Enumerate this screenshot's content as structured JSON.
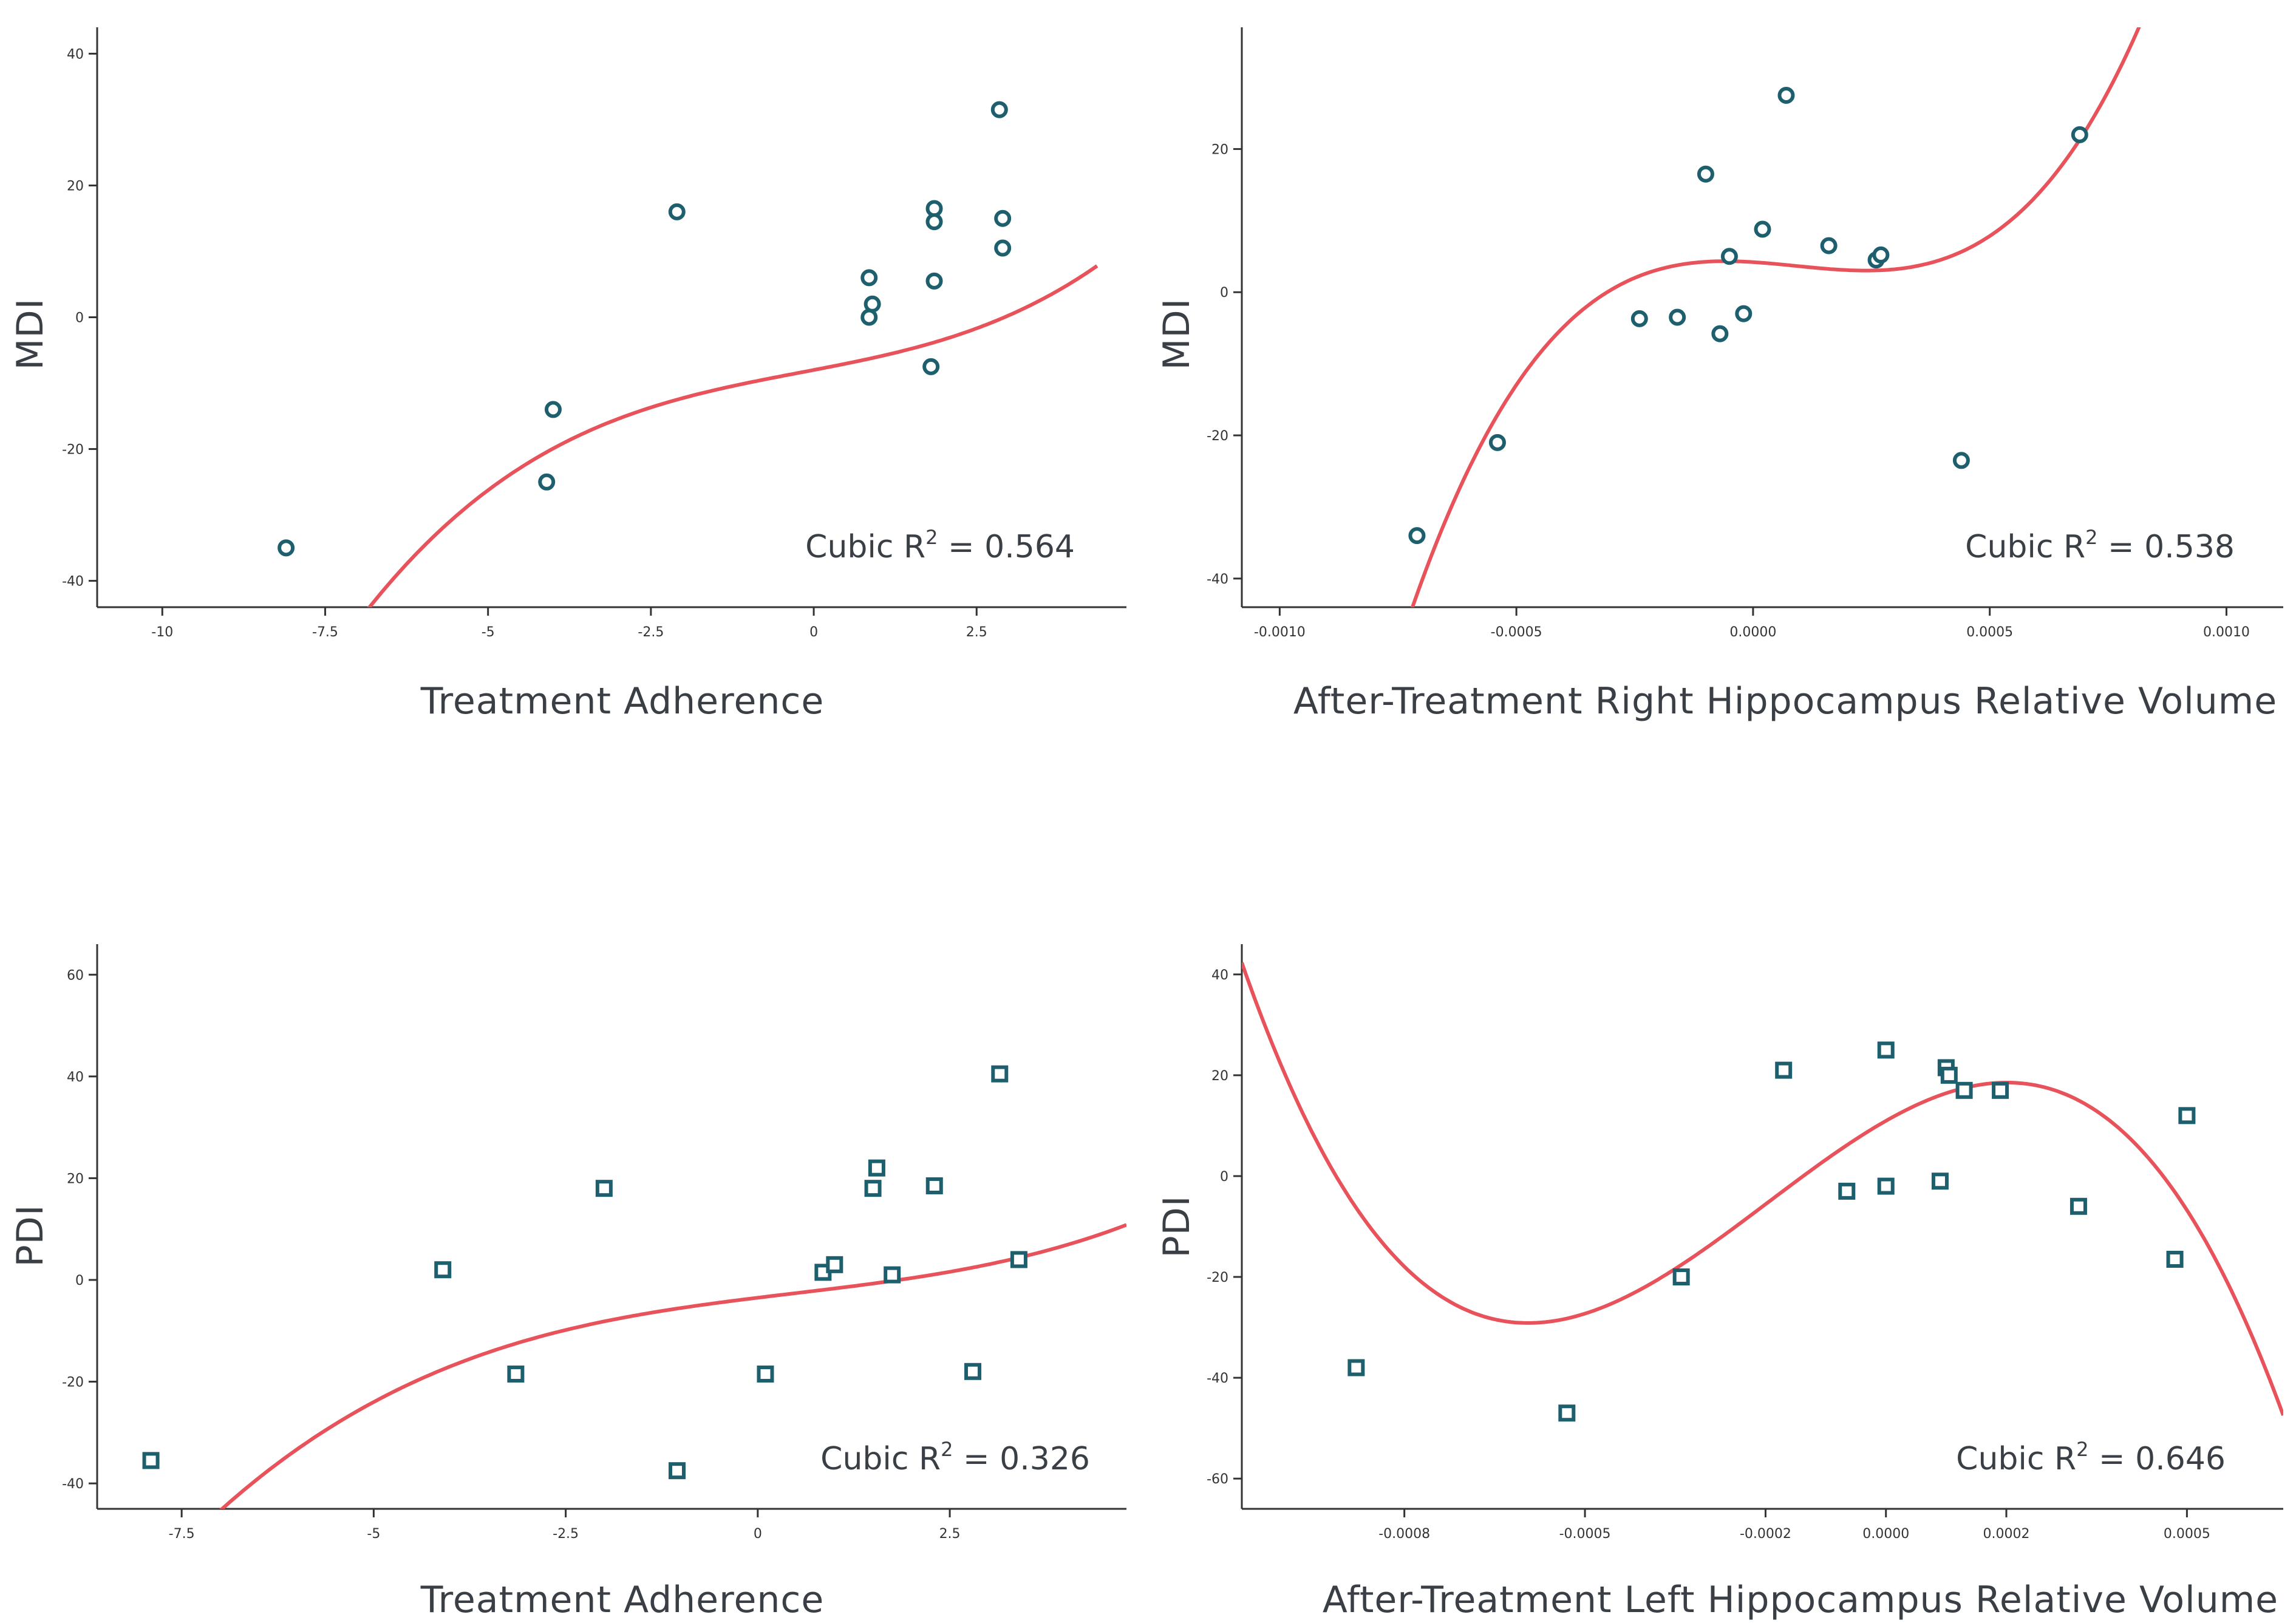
{
  "colors": {
    "fit_line": "#e8535b",
    "marker": "#1e5f6e",
    "axis": "#333333",
    "mdi_label": "#2f3a44",
    "pdi_label": "#cc3a1f"
  },
  "chart_data": [
    {
      "type": "scatter",
      "xlabel": "Treatment Adherence",
      "ylabel": "MDI",
      "marker": "circle",
      "xlim": [
        -11,
        4.8
      ],
      "ylim": [
        -44,
        44
      ],
      "x_ticks": [
        -10,
        -7.5,
        -5,
        -2.5,
        0,
        2.5
      ],
      "x_tick_labels": [
        "-10",
        "-7.5",
        "-5",
        "-2.5",
        "0",
        "2.5"
      ],
      "y_ticks": [
        -40,
        -20,
        0,
        20,
        40
      ],
      "y_tick_labels": [
        "-40",
        "-20",
        "0",
        "20",
        "40"
      ],
      "points": [
        [
          -8.1,
          -35
        ],
        [
          -4.1,
          -25
        ],
        [
          -4.0,
          -14
        ],
        [
          -2.1,
          16
        ],
        [
          0.85,
          6
        ],
        [
          0.9,
          2
        ],
        [
          0.85,
          0
        ],
        [
          1.85,
          16.5
        ],
        [
          1.85,
          14.5
        ],
        [
          1.85,
          5.5
        ],
        [
          1.8,
          -7.5
        ],
        [
          2.85,
          31.5
        ],
        [
          2.9,
          15
        ],
        [
          2.9,
          10.5
        ]
      ],
      "fit": {
        "type": "cubic",
        "coefficients": [
          -8.0,
          1.9,
          0.05,
          0.08
        ],
        "x_range": [
          -8.75,
          4.35
        ]
      },
      "r2_label": "Cubic R",
      "r2_exponent": "2",
      "r2_value": "= 0.564"
    },
    {
      "type": "scatter",
      "xlabel": "After-Treatment Right Hippocampus Relative Volume",
      "ylabel": "MDI",
      "marker": "circle",
      "xlim": [
        -0.00108,
        0.00112
      ],
      "ylim": [
        -44,
        37
      ],
      "x_ticks": [
        -0.001,
        -0.0005,
        0,
        0.0005,
        0.001
      ],
      "x_tick_labels": [
        "-0.0010",
        "-0.0005",
        "0.0000",
        "0.0005",
        "0.0010"
      ],
      "y_ticks": [
        -40,
        -20,
        0,
        20
      ],
      "y_tick_labels": [
        "-40",
        "-20",
        "0",
        "20"
      ],
      "points": [
        [
          -0.00071,
          -34
        ],
        [
          -0.00054,
          -21
        ],
        [
          -0.00024,
          -3.7
        ],
        [
          -0.00016,
          -3.5
        ],
        [
          -0.0001,
          16.5
        ],
        [
          -7e-05,
          -5.8
        ],
        [
          -5e-05,
          5
        ],
        [
          -2e-05,
          -3
        ],
        [
          2e-05,
          8.8
        ],
        [
          7e-05,
          27.5
        ],
        [
          0.00016,
          6.5
        ],
        [
          0.00026,
          4.5
        ],
        [
          0.00027,
          5.2
        ],
        [
          0.00044,
          -23.5
        ],
        [
          0.00069,
          22
        ]
      ],
      "fit": {
        "type": "cubic",
        "coefficients": [
          4.2,
          -4200,
          -27000000,
          100000000000
        ],
        "x_range": [
          -0.00074,
          0.00089
        ]
      },
      "r2_label": "Cubic R",
      "r2_exponent": "2",
      "r2_value": "= 0.538"
    },
    {
      "type": "scatter",
      "xlabel": "Treatment Adherence",
      "ylabel": "PDI",
      "marker": "square",
      "xlim": [
        -8.6,
        4.8
      ],
      "ylim": [
        -45,
        66
      ],
      "x_ticks": [
        -7.5,
        -5,
        -2.5,
        0,
        2.5
      ],
      "x_tick_labels": [
        "-7.5",
        "-5",
        "-2.5",
        "0",
        "2.5"
      ],
      "y_ticks": [
        -40,
        -20,
        0,
        20,
        40,
        60
      ],
      "y_tick_labels": [
        "-40",
        "-20",
        "0",
        "20",
        "40",
        "60"
      ],
      "points": [
        [
          -7.9,
          -35.5
        ],
        [
          -4.1,
          2
        ],
        [
          -3.15,
          -18.5
        ],
        [
          -2.0,
          18
        ],
        [
          -1.05,
          -37.5
        ],
        [
          0.1,
          -18.5
        ],
        [
          0.85,
          1.5
        ],
        [
          1.0,
          3
        ],
        [
          1.5,
          18
        ],
        [
          1.55,
          22
        ],
        [
          1.75,
          1
        ],
        [
          2.3,
          18.5
        ],
        [
          2.8,
          -18
        ],
        [
          3.15,
          40.5
        ],
        [
          3.4,
          4
        ]
      ],
      "fit": {
        "type": "cubic",
        "coefficients": [
          -3.5,
          1.85,
          -0.1,
          0.07
        ],
        "x_range": [
          -8.6,
          4.8
        ]
      },
      "r2_label": "Cubic R",
      "r2_exponent": "2",
      "r2_value": "= 0.326"
    },
    {
      "type": "scatter",
      "xlabel": "After-Treatment Left Hippocampus Relative Volume",
      "ylabel": "PDI",
      "marker": "square",
      "xlim": [
        -0.00107,
        0.00066
      ],
      "ylim": [
        -66,
        46
      ],
      "x_ticks": [
        -0.0008,
        -0.0005,
        -0.0002,
        0,
        0.0002,
        0.0005
      ],
      "x_tick_labels": [
        "-0.0008",
        "-0.0005",
        "-0.0002",
        "0.0000",
        "0.0002",
        "0.0005"
      ],
      "y_ticks": [
        -60,
        -40,
        -20,
        0,
        20,
        40
      ],
      "y_tick_labels": [
        "-60",
        "-40",
        "-20",
        "0",
        "20",
        "40"
      ],
      "points": [
        [
          -0.00088,
          -38
        ],
        [
          -0.00053,
          -47
        ],
        [
          -0.00034,
          -20
        ],
        [
          -0.00017,
          21
        ],
        [
          -6.5e-05,
          -3
        ],
        [
          0,
          25
        ],
        [
          0,
          -2
        ],
        [
          9e-05,
          -1
        ],
        [
          0.0001,
          21.5
        ],
        [
          0.000105,
          20
        ],
        [
          0.00013,
          17
        ],
        [
          0.00019,
          17
        ],
        [
          0.00032,
          -6
        ],
        [
          0.00048,
          -16.5
        ],
        [
          0.0005,
          12
        ]
      ],
      "fit": {
        "type": "cubic",
        "coefficients": [
          10.96,
          67900,
          -111900000,
          -189500000000
        ],
        "x_range": [
          -0.00107,
          0.00066
        ]
      },
      "r2_label": "Cubic R",
      "r2_exponent": "2",
      "r2_value": "= 0.646"
    }
  ]
}
